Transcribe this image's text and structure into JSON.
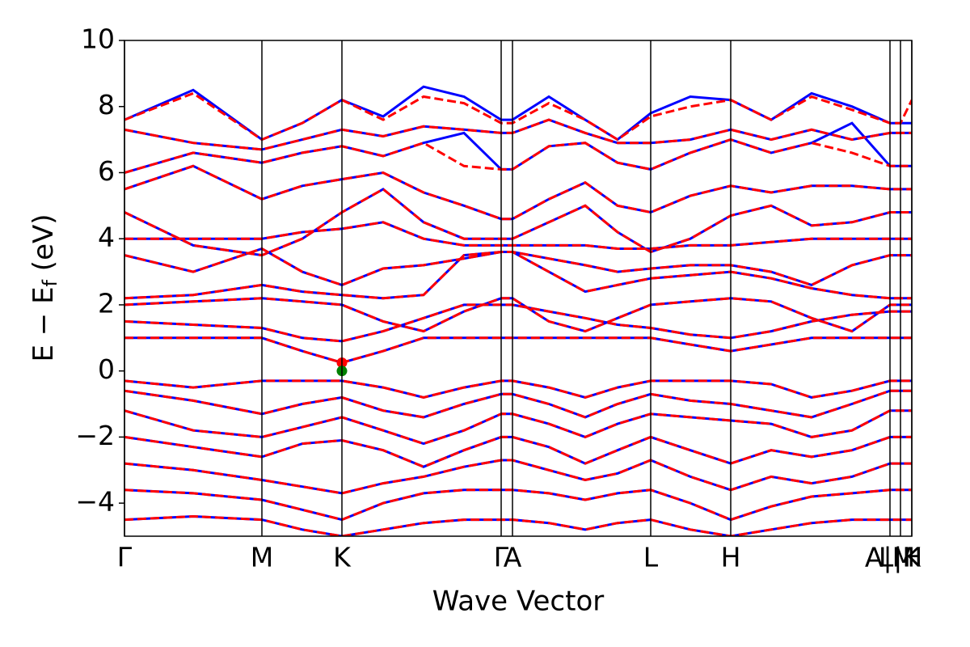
{
  "chart_data": {
    "type": "band_structure",
    "xlabel": "Wave Vector",
    "ylabel_parts": [
      "E − E",
      "f",
      " (eV)"
    ],
    "xlim": [
      0,
      9.74
    ],
    "ylim": [
      -5,
      10
    ],
    "xticks": [
      {
        "value": 0,
        "label": "Γ"
      },
      {
        "value": 1.7,
        "label": "M"
      },
      {
        "value": 2.69,
        "label": "K"
      },
      {
        "value": 4.66,
        "label": "Γ"
      },
      {
        "value": 4.8,
        "label": "A"
      },
      {
        "value": 6.51,
        "label": "L"
      },
      {
        "value": 7.5,
        "label": "H"
      },
      {
        "value": 9.47,
        "label": "A|M"
      },
      {
        "value": 9.6,
        "label": "L|H"
      },
      {
        "value": 9.74,
        "label": "K"
      }
    ],
    "yticks": [
      10,
      8,
      6,
      4,
      2,
      0,
      {
        "value": -2,
        "label": "−2"
      },
      {
        "value": -4,
        "label": "−4"
      }
    ],
    "x": [
      0,
      0.85,
      1.7,
      2.2,
      2.69,
      3.2,
      3.7,
      4.2,
      4.66,
      4.8,
      5.25,
      5.7,
      6.1,
      6.51,
      7.0,
      7.5,
      8.0,
      8.5,
      9.0,
      9.47,
      9.6,
      9.74
    ],
    "series": [
      {
        "color": "#0000ff",
        "line_style": "solid",
        "bands": [
          [
            1.0,
            1.0,
            1.0,
            0.6,
            0.25,
            0.6,
            1.0,
            1.0,
            1.0,
            1.0,
            1.0,
            1.0,
            1.0,
            1.0,
            0.8,
            0.6,
            0.8,
            1.0,
            1.0,
            1.0,
            1.0,
            1.0
          ],
          [
            1.5,
            1.4,
            1.3,
            1.0,
            0.9,
            1.2,
            1.6,
            2.0,
            2.0,
            2.0,
            1.8,
            1.6,
            1.4,
            1.3,
            1.1,
            1.0,
            1.2,
            1.5,
            1.7,
            1.8,
            1.8,
            1.8
          ],
          [
            2.0,
            2.1,
            2.2,
            2.1,
            2.0,
            1.5,
            1.2,
            1.8,
            2.2,
            2.2,
            1.5,
            1.2,
            1.6,
            2.0,
            2.1,
            2.2,
            2.1,
            1.6,
            1.2,
            2.0,
            2.0,
            2.0
          ],
          [
            2.2,
            2.3,
            2.6,
            2.4,
            2.3,
            2.2,
            2.3,
            3.5,
            3.6,
            3.6,
            3.0,
            2.4,
            2.6,
            2.8,
            2.9,
            3.0,
            2.8,
            2.5,
            2.3,
            2.2,
            2.2,
            2.2
          ],
          [
            3.5,
            3.0,
            3.7,
            3.0,
            2.6,
            3.1,
            3.2,
            3.4,
            3.6,
            3.6,
            3.4,
            3.2,
            3.0,
            3.1,
            3.2,
            3.2,
            3.0,
            2.6,
            3.2,
            3.5,
            3.5,
            3.5
          ],
          [
            4.0,
            4.0,
            4.0,
            4.2,
            4.3,
            4.5,
            4.0,
            3.8,
            3.8,
            3.8,
            3.8,
            3.8,
            3.7,
            3.7,
            3.8,
            3.8,
            3.9,
            4.0,
            4.0,
            4.0,
            4.0,
            4.0
          ],
          [
            4.8,
            3.8,
            3.5,
            4.0,
            4.8,
            5.5,
            4.5,
            4.0,
            4.0,
            4.0,
            4.5,
            5.0,
            4.2,
            3.6,
            4.0,
            4.7,
            5.0,
            4.4,
            4.5,
            4.8,
            4.8,
            4.8
          ],
          [
            5.5,
            6.2,
            5.2,
            5.6,
            5.8,
            6.0,
            5.4,
            5.0,
            4.6,
            4.6,
            5.2,
            5.7,
            5.0,
            4.8,
            5.3,
            5.6,
            5.4,
            5.6,
            5.6,
            5.5,
            5.5,
            5.5
          ],
          [
            6.0,
            6.6,
            6.3,
            6.6,
            6.8,
            6.5,
            6.9,
            7.2,
            6.1,
            6.1,
            6.8,
            6.9,
            6.3,
            6.1,
            6.6,
            7.0,
            6.6,
            6.9,
            7.5,
            6.2,
            6.2,
            6.2
          ],
          [
            7.3,
            6.9,
            6.7,
            7.0,
            7.3,
            7.1,
            7.4,
            7.3,
            7.2,
            7.2,
            7.6,
            7.2,
            6.9,
            6.9,
            7.0,
            7.3,
            7.0,
            7.3,
            7.0,
            7.2,
            7.2,
            7.2
          ],
          [
            7.6,
            8.5,
            7.0,
            7.5,
            8.2,
            7.7,
            8.6,
            8.3,
            7.6,
            7.6,
            8.3,
            7.6,
            7.0,
            7.8,
            8.3,
            8.2,
            7.6,
            8.4,
            8.0,
            7.5,
            7.5,
            7.5
          ],
          [
            -0.3,
            -0.5,
            -0.3,
            -0.3,
            -0.3,
            -0.5,
            -0.8,
            -0.5,
            -0.3,
            -0.3,
            -0.5,
            -0.8,
            -0.5,
            -0.3,
            -0.3,
            -0.3,
            -0.4,
            -0.8,
            -0.6,
            -0.3,
            -0.3,
            -0.3
          ],
          [
            -0.6,
            -0.9,
            -1.3,
            -1.0,
            -0.8,
            -1.2,
            -1.4,
            -1.0,
            -0.7,
            -0.7,
            -1.0,
            -1.4,
            -1.0,
            -0.7,
            -0.9,
            -1.0,
            -1.2,
            -1.4,
            -1.0,
            -0.6,
            -0.6,
            -0.6
          ],
          [
            -1.2,
            -1.8,
            -2.0,
            -1.7,
            -1.4,
            -1.8,
            -2.2,
            -1.8,
            -1.3,
            -1.3,
            -1.6,
            -2.0,
            -1.6,
            -1.3,
            -1.4,
            -1.5,
            -1.6,
            -2.0,
            -1.8,
            -1.2,
            -1.2,
            -1.2
          ],
          [
            -2.0,
            -2.3,
            -2.6,
            -2.2,
            -2.1,
            -2.4,
            -2.9,
            -2.4,
            -2.0,
            -2.0,
            -2.3,
            -2.8,
            -2.4,
            -2.0,
            -2.4,
            -2.8,
            -2.4,
            -2.6,
            -2.4,
            -2.0,
            -2.0,
            -2.0
          ],
          [
            -2.8,
            -3.0,
            -3.3,
            -3.5,
            -3.7,
            -3.4,
            -3.2,
            -2.9,
            -2.7,
            -2.7,
            -3.0,
            -3.3,
            -3.1,
            -2.7,
            -3.2,
            -3.6,
            -3.2,
            -3.4,
            -3.2,
            -2.8,
            -2.8,
            -2.8
          ],
          [
            -3.6,
            -3.7,
            -3.9,
            -4.2,
            -4.5,
            -4.0,
            -3.7,
            -3.6,
            -3.6,
            -3.6,
            -3.7,
            -3.9,
            -3.7,
            -3.6,
            -4.0,
            -4.5,
            -4.1,
            -3.8,
            -3.7,
            -3.6,
            -3.6,
            -3.6
          ],
          [
            -4.5,
            -4.4,
            -4.5,
            -4.8,
            -5.0,
            -4.8,
            -4.6,
            -4.5,
            -4.5,
            -4.5,
            -4.6,
            -4.8,
            -4.6,
            -4.5,
            -4.8,
            -5.0,
            -4.8,
            -4.6,
            -4.5,
            -4.5,
            -4.5,
            -4.5
          ]
        ]
      },
      {
        "color": "#ff0000",
        "line_style": "dashed",
        "bands": [
          [
            1.0,
            1.0,
            1.0,
            0.6,
            0.25,
            0.6,
            1.0,
            1.0,
            1.0,
            1.0,
            1.0,
            1.0,
            1.0,
            1.0,
            0.8,
            0.6,
            0.8,
            1.0,
            1.0,
            1.0,
            1.0,
            1.0
          ],
          [
            1.5,
            1.4,
            1.3,
            1.0,
            0.9,
            1.2,
            1.6,
            2.0,
            2.0,
            2.0,
            1.8,
            1.6,
            1.4,
            1.3,
            1.1,
            1.0,
            1.2,
            1.5,
            1.7,
            1.8,
            1.8,
            1.8
          ],
          [
            2.0,
            2.1,
            2.2,
            2.1,
            2.0,
            1.5,
            1.2,
            1.8,
            2.2,
            2.2,
            1.5,
            1.2,
            1.6,
            2.0,
            2.1,
            2.2,
            2.1,
            1.6,
            1.2,
            2.0,
            2.0,
            2.0
          ],
          [
            2.2,
            2.3,
            2.6,
            2.4,
            2.3,
            2.2,
            2.3,
            3.5,
            3.6,
            3.6,
            3.0,
            2.4,
            2.6,
            2.8,
            2.9,
            3.0,
            2.8,
            2.5,
            2.3,
            2.2,
            2.2,
            2.2
          ],
          [
            3.5,
            3.0,
            3.7,
            3.0,
            2.6,
            3.1,
            3.2,
            3.4,
            3.6,
            3.6,
            3.4,
            3.2,
            3.0,
            3.1,
            3.2,
            3.2,
            3.0,
            2.6,
            3.2,
            3.5,
            3.5,
            3.5
          ],
          [
            4.0,
            4.0,
            4.0,
            4.2,
            4.3,
            4.5,
            4.0,
            3.8,
            3.8,
            3.8,
            3.8,
            3.8,
            3.7,
            3.7,
            3.8,
            3.8,
            3.9,
            4.0,
            4.0,
            4.0,
            4.0,
            4.0
          ],
          [
            4.8,
            3.8,
            3.5,
            4.0,
            4.8,
            5.5,
            4.5,
            4.0,
            4.0,
            4.0,
            4.5,
            5.0,
            4.2,
            3.6,
            4.0,
            4.7,
            5.0,
            4.4,
            4.5,
            4.8,
            4.8,
            4.8
          ],
          [
            5.5,
            6.2,
            5.2,
            5.6,
            5.8,
            6.0,
            5.4,
            5.0,
            4.6,
            4.6,
            5.2,
            5.7,
            5.0,
            4.8,
            5.3,
            5.6,
            5.4,
            5.6,
            5.6,
            5.5,
            5.5,
            5.5
          ],
          [
            6.0,
            6.6,
            6.3,
            6.6,
            6.8,
            6.5,
            6.9,
            6.2,
            6.1,
            6.1,
            6.8,
            6.9,
            6.3,
            6.1,
            6.6,
            7.0,
            6.6,
            6.9,
            6.6,
            6.2,
            6.2,
            6.2
          ],
          [
            7.3,
            6.9,
            6.7,
            7.0,
            7.3,
            7.1,
            7.4,
            7.3,
            7.2,
            7.2,
            7.6,
            7.2,
            6.9,
            6.9,
            7.0,
            7.3,
            7.0,
            7.3,
            7.0,
            7.2,
            7.2,
            7.2
          ],
          [
            7.6,
            8.4,
            7.0,
            7.5,
            8.2,
            7.6,
            8.3,
            8.1,
            7.5,
            7.5,
            8.1,
            7.6,
            7.0,
            7.7,
            8.0,
            8.2,
            7.6,
            8.3,
            7.9,
            7.5,
            7.5,
            8.2
          ],
          [
            -0.3,
            -0.5,
            -0.3,
            -0.3,
            -0.3,
            -0.5,
            -0.8,
            -0.5,
            -0.3,
            -0.3,
            -0.5,
            -0.8,
            -0.5,
            -0.3,
            -0.3,
            -0.3,
            -0.4,
            -0.8,
            -0.6,
            -0.3,
            -0.3,
            -0.3
          ],
          [
            -0.6,
            -0.9,
            -1.3,
            -1.0,
            -0.8,
            -1.2,
            -1.4,
            -1.0,
            -0.7,
            -0.7,
            -1.0,
            -1.4,
            -1.0,
            -0.7,
            -0.9,
            -1.0,
            -1.2,
            -1.4,
            -1.0,
            -0.6,
            -0.6,
            -0.6
          ],
          [
            -1.2,
            -1.8,
            -2.0,
            -1.7,
            -1.4,
            -1.8,
            -2.2,
            -1.8,
            -1.3,
            -1.3,
            -1.6,
            -2.0,
            -1.6,
            -1.3,
            -1.4,
            -1.5,
            -1.6,
            -2.0,
            -1.8,
            -1.2,
            -1.2,
            -1.2
          ],
          [
            -2.0,
            -2.3,
            -2.6,
            -2.2,
            -2.1,
            -2.4,
            -2.9,
            -2.4,
            -2.0,
            -2.0,
            -2.3,
            -2.8,
            -2.4,
            -2.0,
            -2.4,
            -2.8,
            -2.4,
            -2.6,
            -2.4,
            -2.0,
            -2.0,
            -2.0
          ],
          [
            -2.8,
            -3.0,
            -3.3,
            -3.5,
            -3.7,
            -3.4,
            -3.2,
            -2.9,
            -2.7,
            -2.7,
            -3.0,
            -3.3,
            -3.1,
            -2.7,
            -3.2,
            -3.6,
            -3.2,
            -3.4,
            -3.2,
            -2.8,
            -2.8,
            -2.8
          ],
          [
            -3.6,
            -3.7,
            -3.9,
            -4.2,
            -4.5,
            -4.0,
            -3.7,
            -3.6,
            -3.6,
            -3.6,
            -3.7,
            -3.9,
            -3.7,
            -3.6,
            -4.0,
            -4.5,
            -4.1,
            -3.8,
            -3.7,
            -3.6,
            -3.6,
            -3.6
          ],
          [
            -4.5,
            -4.4,
            -4.5,
            -4.8,
            -5.0,
            -4.8,
            -4.6,
            -4.5,
            -4.5,
            -4.5,
            -4.6,
            -4.8,
            -4.6,
            -4.5,
            -4.8,
            -5.0,
            -4.8,
            -4.6,
            -4.5,
            -4.5,
            -4.5,
            -4.5
          ]
        ]
      }
    ],
    "points": [
      {
        "x": 2.69,
        "y": 0.25,
        "color": "#ff0000"
      },
      {
        "x": 2.69,
        "y": 0,
        "color": "#008000"
      }
    ]
  }
}
